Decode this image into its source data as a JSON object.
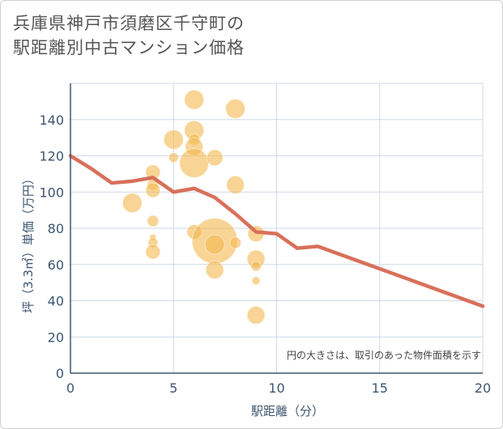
{
  "title_line1": "兵庫県神戸市須磨区千守町の",
  "title_line2": "駅距離別中古マンション価格",
  "chart_data": {
    "type": "scatter",
    "xlabel": "駅距離（分）",
    "ylabel": "坪（3.3㎡）単価（万円）",
    "xlim": [
      0,
      20
    ],
    "ylim": [
      0,
      160
    ],
    "xticks": [
      0,
      5,
      10,
      15,
      20
    ],
    "yticks": [
      0,
      20,
      40,
      60,
      80,
      100,
      120,
      140
    ],
    "grid": true,
    "note": "円の大きさは、取引のあった物件面積を示す",
    "colors": {
      "bubble": "#f3b84e",
      "line": "#d8705a",
      "grid": "#cfd9e6",
      "axis": "#3d5670"
    },
    "series": [
      {
        "type": "scatter",
        "points": [
          {
            "x": 3,
            "y": 94,
            "size": 12
          },
          {
            "x": 4,
            "y": 111,
            "size": 9
          },
          {
            "x": 4,
            "y": 104,
            "size": 7
          },
          {
            "x": 4,
            "y": 101,
            "size": 9
          },
          {
            "x": 4,
            "y": 84,
            "size": 7
          },
          {
            "x": 4,
            "y": 75,
            "size": 4
          },
          {
            "x": 4,
            "y": 72,
            "size": 6
          },
          {
            "x": 4,
            "y": 67,
            "size": 9
          },
          {
            "x": 5,
            "y": 129,
            "size": 12
          },
          {
            "x": 5,
            "y": 119,
            "size": 6
          },
          {
            "x": 6,
            "y": 151,
            "size": 12
          },
          {
            "x": 6,
            "y": 134,
            "size": 12
          },
          {
            "x": 6,
            "y": 129,
            "size": 7
          },
          {
            "x": 6,
            "y": 125,
            "size": 11
          },
          {
            "x": 6,
            "y": 116,
            "size": 18
          },
          {
            "x": 6,
            "y": 78,
            "size": 9
          },
          {
            "x": 7,
            "y": 119,
            "size": 10
          },
          {
            "x": 7,
            "y": 73,
            "size": 28
          },
          {
            "x": 7,
            "y": 71,
            "size": 12
          },
          {
            "x": 7,
            "y": 57,
            "size": 11
          },
          {
            "x": 8,
            "y": 146,
            "size": 12
          },
          {
            "x": 8,
            "y": 104,
            "size": 11
          },
          {
            "x": 8,
            "y": 72,
            "size": 7
          },
          {
            "x": 9,
            "y": 77,
            "size": 10
          },
          {
            "x": 9,
            "y": 63,
            "size": 11
          },
          {
            "x": 9,
            "y": 59,
            "size": 6
          },
          {
            "x": 9,
            "y": 51,
            "size": 5
          },
          {
            "x": 9,
            "y": 32,
            "size": 11
          }
        ]
      },
      {
        "type": "line",
        "x": [
          0,
          1,
          2,
          3,
          4,
          5,
          6,
          7,
          8,
          9,
          10,
          11,
          12,
          20
        ],
        "y": [
          120,
          113,
          105,
          106,
          108,
          100,
          102,
          97,
          88,
          78,
          77,
          69,
          70,
          37
        ]
      }
    ]
  }
}
